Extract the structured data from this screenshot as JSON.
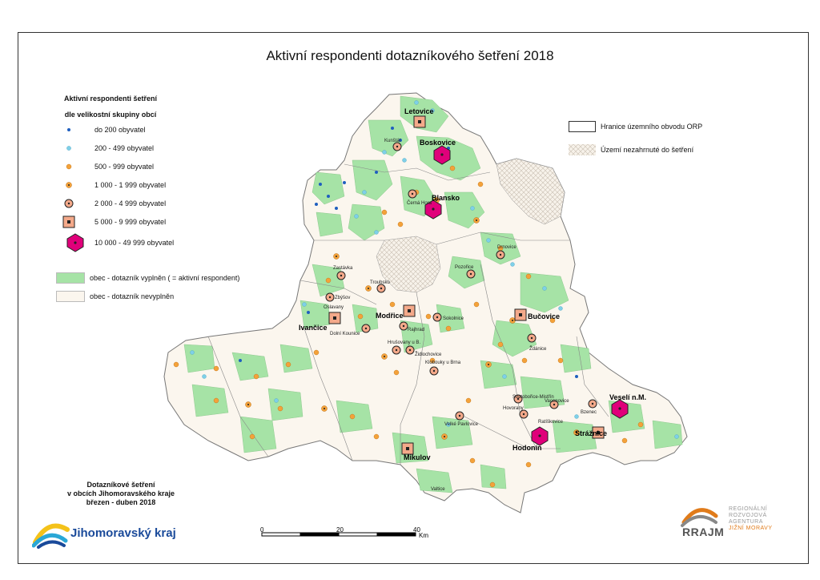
{
  "title": "Aktivní respondenti dotazníkového šetření 2018",
  "legend": {
    "heading_line1": "Aktivní respondenti šetření",
    "heading_line2": "dle velikostní skupiny obcí",
    "size_classes": [
      {
        "label": "do 200 obyvatel",
        "symbol": "small-blue-dot",
        "color": "#1f5fbf"
      },
      {
        "label": "200 - 499 obyvatel",
        "symbol": "light-blue-dot",
        "color": "#7fd0e8"
      },
      {
        "label": "500 - 999 obyvatel",
        "symbol": "orange-dot",
        "color": "#f4a23a"
      },
      {
        "label": "1 000 - 1 999 obyvatel",
        "symbol": "orange-dot-center",
        "color": "#f4a23a"
      },
      {
        "label": "2 000 - 4 999 obyvatel",
        "symbol": "ring-dot",
        "color": "#f4a98a"
      },
      {
        "label": "5 000 - 9 999 obyvatel",
        "symbol": "square-dot",
        "color": "#f4a98a"
      },
      {
        "label": "10 000 - 49 999 obyvatel",
        "symbol": "magenta-hexagon",
        "color": "#e0007a"
      }
    ],
    "areas": [
      {
        "label": "obec - dotazník vyplněn ( = aktivní respondent)",
        "color": "#a6e3a6"
      },
      {
        "label": "obec - dotazník nevyplněn",
        "color": "#fbf6ee"
      }
    ],
    "right": [
      {
        "label": "Hranice územního obvodu ORP",
        "style": "outline"
      },
      {
        "label": "Území nezahrnuté do šetření",
        "style": "hatched"
      }
    ]
  },
  "cities": [
    {
      "name": "Letovice",
      "class": "square-dot"
    },
    {
      "name": "Boskovice",
      "class": "magenta-hexagon"
    },
    {
      "name": "Blansko",
      "class": "magenta-hexagon"
    },
    {
      "name": "Modřice",
      "class": "square-dot"
    },
    {
      "name": "Ivančice",
      "class": "square-dot"
    },
    {
      "name": "Bučovice",
      "class": "square-dot"
    },
    {
      "name": "Veselí n.M.",
      "class": "magenta-hexagon"
    },
    {
      "name": "Hodonín",
      "class": "magenta-hexagon"
    },
    {
      "name": "Strážnice",
      "class": "square-dot"
    },
    {
      "name": "Mikulov",
      "class": "square-dot"
    }
  ],
  "places": [
    "Kunštát",
    "Černá Hora",
    "Zastávka",
    "Zbýšov",
    "Oslavany",
    "Troubsko",
    "Dolní Kounice",
    "Rajhrad",
    "Sokolnice",
    "Hrušovany u B.",
    "Židlochovice",
    "Pozořice",
    "Drnovice",
    "Ždánice",
    "Klobouky u Brna",
    "Svatobořice-Mistřín",
    "Vacenovice",
    "Hovorany",
    "Ratíškovice",
    "Bzenec",
    "Velké Pavlovice",
    "Valtice"
  ],
  "footnote": {
    "line1": "Dotazníkové šetření",
    "line2": "v obcích Jihomoravského kraje",
    "line3": "březen - duben 2018"
  },
  "logos": {
    "kraj": "Jihomoravský kraj",
    "rrajm_mark": "RRAJM",
    "rrajm_lines": [
      "REGIONÁLNÍ",
      "ROZVOJOVÁ",
      "AGENTURA",
      "JIŽNÍ MORAVY"
    ]
  },
  "scale": {
    "ticks": [
      "0",
      "20",
      "40"
    ],
    "unit": "Km"
  }
}
